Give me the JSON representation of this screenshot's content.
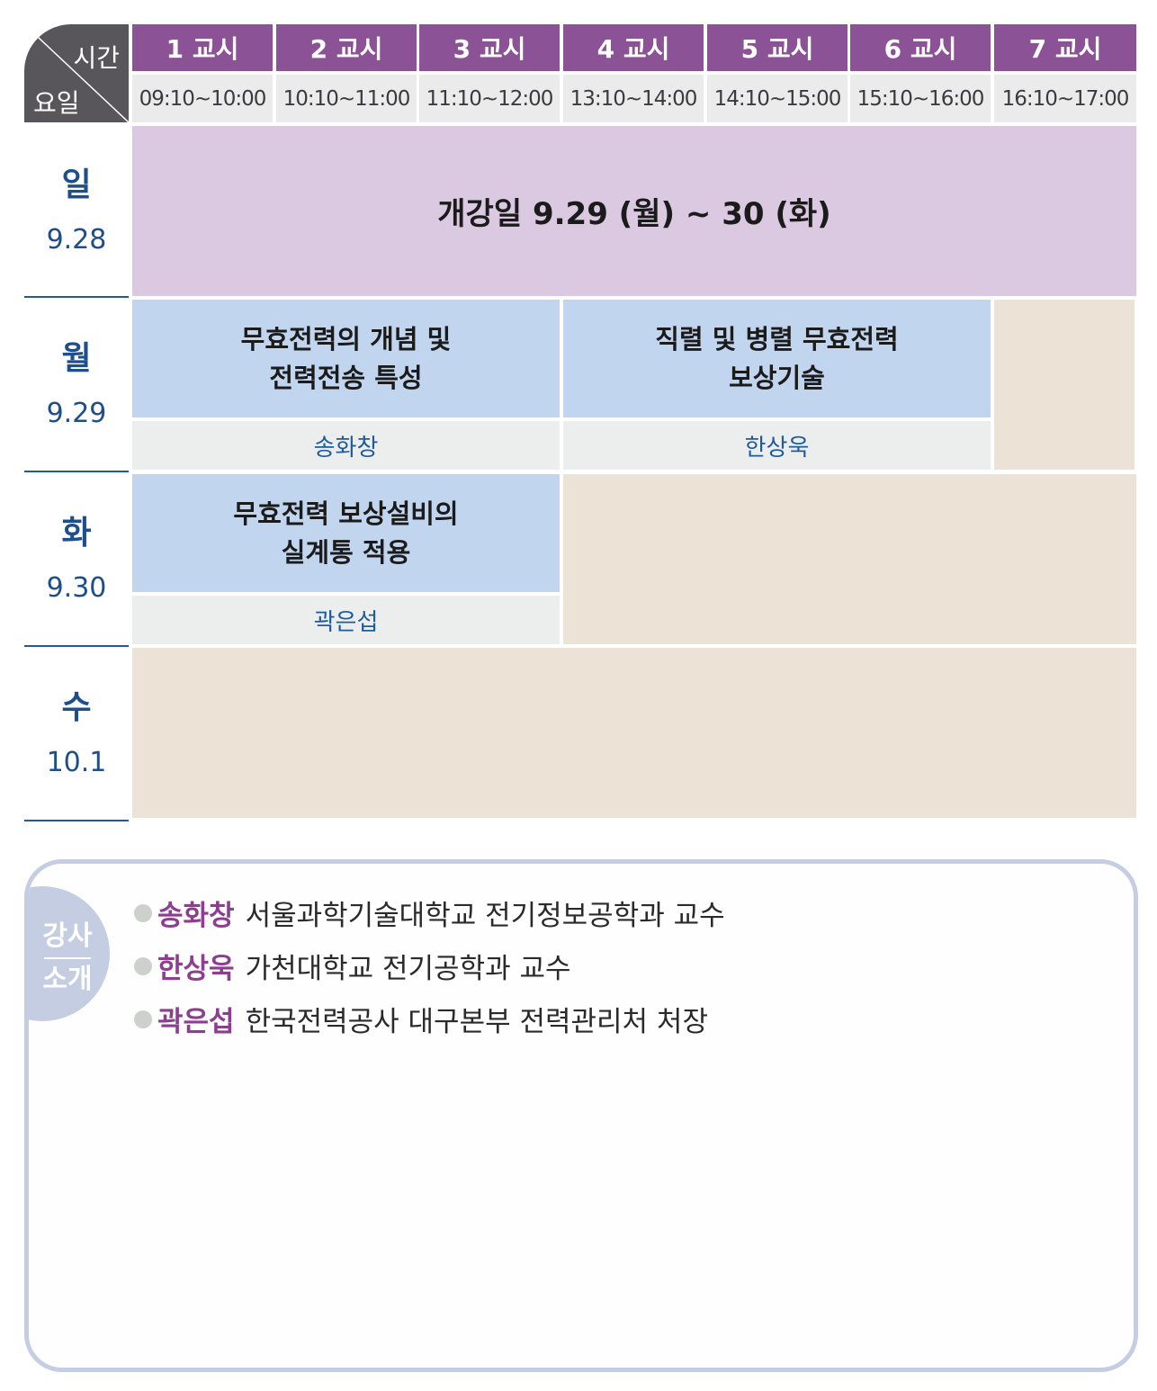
{
  "corner": {
    "time_label": "시간",
    "day_label": "요일"
  },
  "periods": [
    {
      "label": "1 교시",
      "time": "09:10~10:00"
    },
    {
      "label": "2 교시",
      "time": "10:10~11:00"
    },
    {
      "label": "3 교시",
      "time": "11:10~12:00"
    },
    {
      "label": "4 교시",
      "time": "13:10~14:00"
    },
    {
      "label": "5 교시",
      "time": "14:10~15:00"
    },
    {
      "label": "6 교시",
      "time": "15:10~16:00"
    },
    {
      "label": "7 교시",
      "time": "16:10~17:00"
    }
  ],
  "days": [
    {
      "name": "일",
      "date": "9.28"
    },
    {
      "name": "월",
      "date": "9.29"
    },
    {
      "name": "화",
      "date": "9.30"
    },
    {
      "name": "수",
      "date": "10.1"
    }
  ],
  "sessions": {
    "opening": "개강일 9.29 (월) ~ 30 (화)",
    "mon_a": {
      "title": "무효전력의 개념 및\n전력전송 특성",
      "lecturer": "송화창"
    },
    "mon_b": {
      "title": "직렬 및 병렬 무효전력\n보상기술",
      "lecturer": "한상욱"
    },
    "tue_a": {
      "title": "무효전력 보상설비의\n실계통 적용",
      "lecturer": "곽은섭"
    }
  },
  "intro": {
    "tab_line1": "강사",
    "tab_line2": "소개",
    "items": [
      {
        "name": "송화창",
        "desc": "서울과학기술대학교 전기정보공학과 교수"
      },
      {
        "name": "한상욱",
        "desc": "가천대학교 전기공학과 교수"
      },
      {
        "name": "곽은섭",
        "desc": "한국전력공사 대구본부 전력관리처 처장"
      }
    ]
  },
  "colors": {
    "header_purple": "#8c5296",
    "opening_lilac": "#dac9e1",
    "lecture_blue": "#c2d5ee",
    "lecturer_gray": "#eceeed",
    "empty_beige": "#ede2d6",
    "day_blue": "#1f4e8c",
    "name_purple": "#8c3f8e"
  }
}
